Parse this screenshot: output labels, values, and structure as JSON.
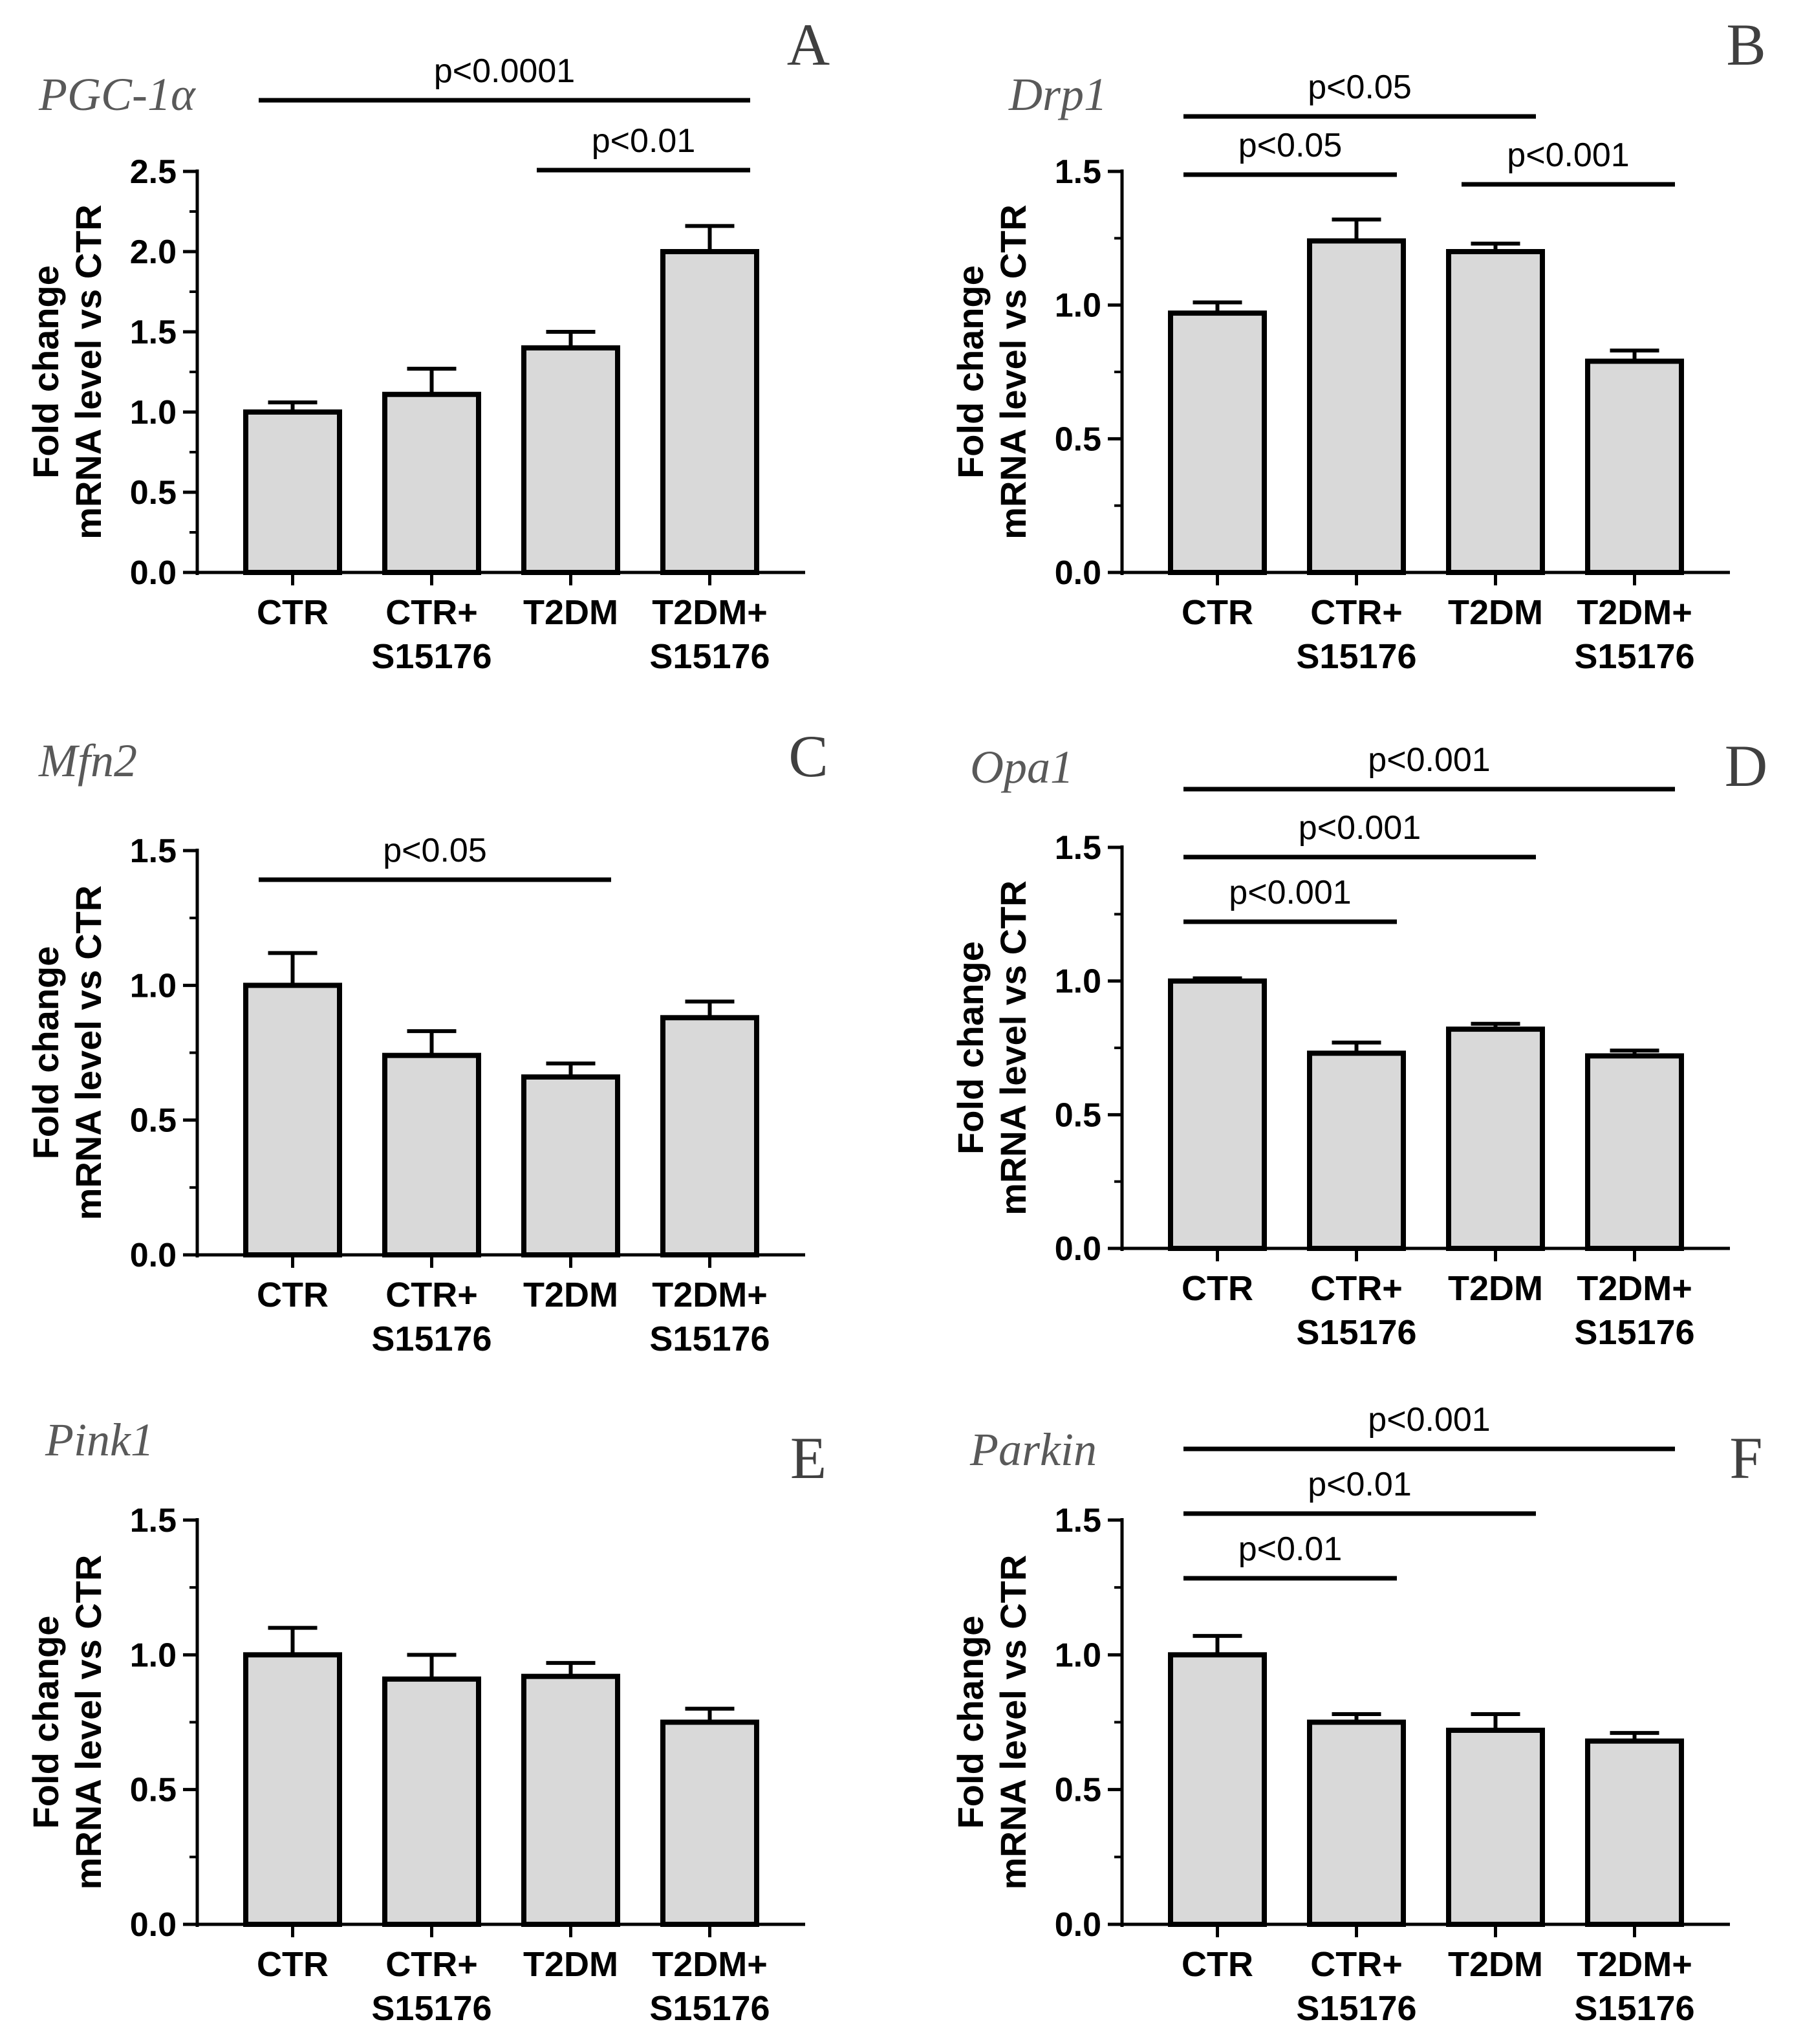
{
  "figure": {
    "ylabel_line1": "Fold change",
    "ylabel_line2": "mRNA level vs CTR",
    "bar_color": "#d9d9d9",
    "stroke_color": "#000000",
    "gene_color": "#595959"
  },
  "chart_data": [
    {
      "type": "bar",
      "panel": "A",
      "title": "PGC-1α",
      "ylabel": "Fold change mRNA level vs CTR",
      "categories": [
        [
          "CTR"
        ],
        [
          "CTR+",
          "S15176"
        ],
        [
          "T2DM"
        ],
        [
          "T2DM+",
          "S15176"
        ]
      ],
      "values": [
        1.0,
        1.11,
        1.4,
        2.0
      ],
      "errors": [
        0.06,
        0.16,
        0.1,
        0.16
      ],
      "ylim": [
        0,
        2.5
      ],
      "yticks": [
        "0.0",
        "0.5",
        "1.0",
        "1.5",
        "2.0",
        "2.5"
      ],
      "significance": [
        {
          "from": 0,
          "to": 3,
          "label": "p<0.0001"
        },
        {
          "from": 2,
          "to": 3,
          "label": "p<0.01"
        }
      ]
    },
    {
      "type": "bar",
      "panel": "B",
      "title": "Drp1",
      "ylabel": "Fold change mRNA level vs CTR",
      "categories": [
        [
          "CTR"
        ],
        [
          "CTR+",
          "S15176"
        ],
        [
          "T2DM"
        ],
        [
          "T2DM+",
          "S15176"
        ]
      ],
      "values": [
        0.97,
        1.24,
        1.2,
        0.79
      ],
      "errors": [
        0.04,
        0.08,
        0.03,
        0.04
      ],
      "ylim": [
        0,
        1.5
      ],
      "yticks": [
        "0.0",
        "0.5",
        "1.0",
        "1.5"
      ],
      "significance": [
        {
          "from": 0,
          "to": 2,
          "label": "p<0.05"
        },
        {
          "from": 0,
          "to": 1,
          "label": "p<0.05"
        },
        {
          "from": 2,
          "to": 3,
          "label": "p<0.001"
        }
      ]
    },
    {
      "type": "bar",
      "panel": "C",
      "title": "Mfn2",
      "ylabel": "Fold change mRNA level vs CTR",
      "categories": [
        [
          "CTR"
        ],
        [
          "CTR+",
          "S15176"
        ],
        [
          "T2DM"
        ],
        [
          "T2DM+",
          "S15176"
        ]
      ],
      "values": [
        1.0,
        0.74,
        0.66,
        0.88
      ],
      "errors": [
        0.12,
        0.09,
        0.05,
        0.06
      ],
      "ylim": [
        0,
        1.5
      ],
      "yticks": [
        "0.0",
        "0.5",
        "1.0",
        "1.5"
      ],
      "significance": [
        {
          "from": 0,
          "to": 2,
          "label": "p<0.05"
        }
      ]
    },
    {
      "type": "bar",
      "panel": "D",
      "title": "Opa1",
      "ylabel": "Fold change mRNA level vs CTR",
      "categories": [
        [
          "CTR"
        ],
        [
          "CTR+",
          "S15176"
        ],
        [
          "T2DM"
        ],
        [
          "T2DM+",
          "S15176"
        ]
      ],
      "values": [
        1.0,
        0.73,
        0.82,
        0.72
      ],
      "errors": [
        0.01,
        0.04,
        0.02,
        0.02
      ],
      "ylim": [
        0,
        1.5
      ],
      "yticks": [
        "0.0",
        "0.5",
        "1.0",
        "1.5"
      ],
      "significance": [
        {
          "from": 0,
          "to": 3,
          "label": "p<0.001"
        },
        {
          "from": 0,
          "to": 2,
          "label": "p<0.001"
        },
        {
          "from": 0,
          "to": 1,
          "label": "p<0.001"
        }
      ]
    },
    {
      "type": "bar",
      "panel": "E",
      "title": "Pink1",
      "ylabel": "Fold change mRNA level vs CTR",
      "categories": [
        [
          "CTR"
        ],
        [
          "CTR+",
          "S15176"
        ],
        [
          "T2DM"
        ],
        [
          "T2DM+",
          "S15176"
        ]
      ],
      "values": [
        1.0,
        0.91,
        0.92,
        0.75
      ],
      "errors": [
        0.1,
        0.09,
        0.05,
        0.05
      ],
      "ylim": [
        0,
        1.5
      ],
      "yticks": [
        "0.0",
        "0.5",
        "1.0",
        "1.5"
      ],
      "significance": []
    },
    {
      "type": "bar",
      "panel": "F",
      "title": "Parkin",
      "ylabel": "Fold change mRNA level vs CTR",
      "categories": [
        [
          "CTR"
        ],
        [
          "CTR+",
          "S15176"
        ],
        [
          "T2DM"
        ],
        [
          "T2DM+",
          "S15176"
        ]
      ],
      "values": [
        1.0,
        0.75,
        0.72,
        0.68
      ],
      "errors": [
        0.07,
        0.03,
        0.06,
        0.03
      ],
      "ylim": [
        0,
        1.5
      ],
      "yticks": [
        "0.0",
        "0.5",
        "1.0",
        "1.5"
      ],
      "significance": [
        {
          "from": 0,
          "to": 3,
          "label": "p<0.001"
        },
        {
          "from": 0,
          "to": 2,
          "label": "p<0.01"
        },
        {
          "from": 0,
          "to": 1,
          "label": "p<0.01"
        }
      ]
    }
  ]
}
